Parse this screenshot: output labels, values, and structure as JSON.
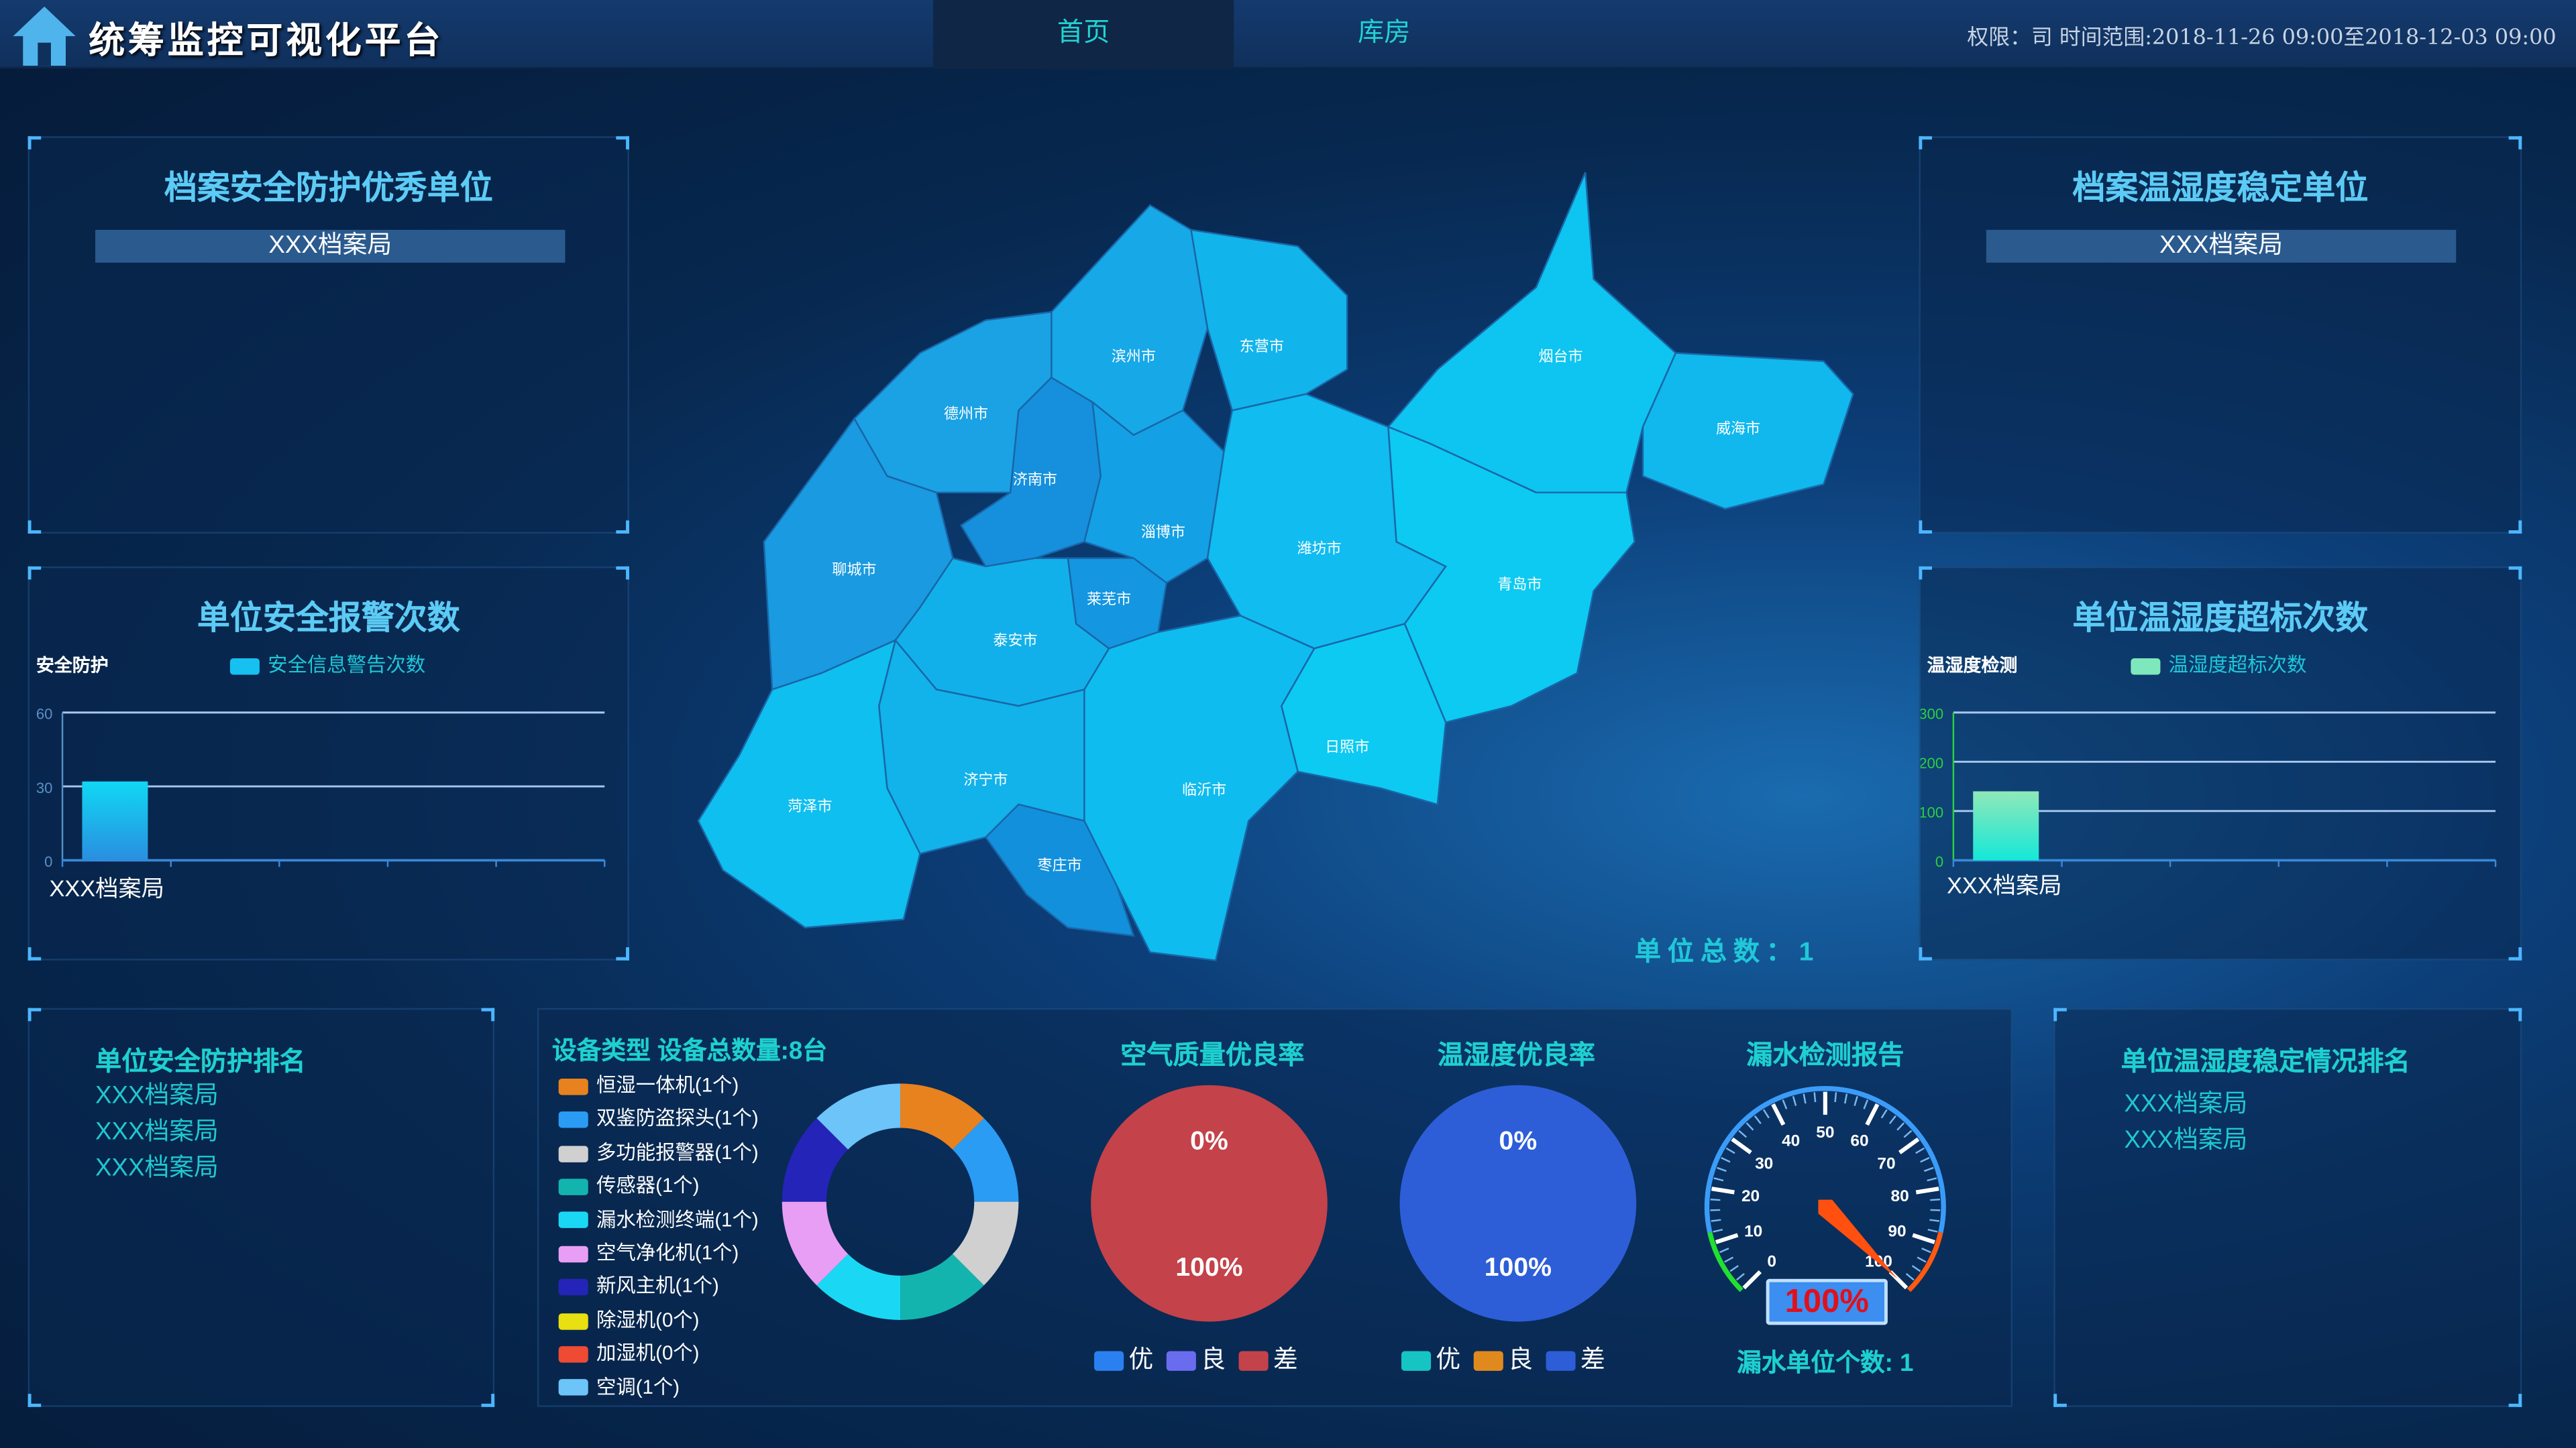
{
  "header": {
    "title": "统筹监控可视化平台",
    "icon": "home-icon",
    "tabs": [
      {
        "label": "首页",
        "active": true
      },
      {
        "label": "库房",
        "active": false
      }
    ],
    "rights": "权限：司  时间范围:2018-11-26 09:00至2018-12-03 09:00"
  },
  "top_left": {
    "title": "档案安全防护优秀单位",
    "unit": "XXX档案局"
  },
  "top_right": {
    "title": "档案温湿度稳定单位",
    "unit": "XXX档案局"
  },
  "mid_left": {
    "title": "单位安全报警次数",
    "chart_data": {
      "type": "bar",
      "ylabel": "安全防护",
      "legend": "安全信息警告次数",
      "categories": [
        "XXX档案局"
      ],
      "values": [
        32
      ],
      "ylim": [
        0,
        60
      ],
      "yticks": [
        0,
        30,
        60
      ],
      "color": "#16d0f0"
    }
  },
  "mid_right": {
    "title": "单位温湿度超标次数",
    "chart_data": {
      "type": "bar",
      "ylabel": "温湿度检测",
      "legend": "温湿度超标次数",
      "categories": [
        "XXX档案局"
      ],
      "values": [
        140
      ],
      "ylim": [
        0,
        300
      ],
      "yticks": [
        0,
        100,
        200,
        300
      ],
      "color": "#3ee6c8"
    }
  },
  "map": {
    "cities": [
      "滨州市",
      "东营市",
      "德州市",
      "济南市",
      "淄博市",
      "潍坊市",
      "烟台市",
      "威海市",
      "青岛市",
      "聊城市",
      "莱芜市",
      "泰安市",
      "日照市",
      "临沂市",
      "济宁市",
      "菏泽市",
      "枣庄市"
    ],
    "total_label": "单位总数：1"
  },
  "rank_left": {
    "title": "单位安全防护排名",
    "items": [
      "XXX档案局",
      "XXX档案局",
      "XXX档案局"
    ]
  },
  "rank_right": {
    "title": "单位温湿度稳定情况排名",
    "items": [
      "XXX档案局",
      "XXX档案局"
    ]
  },
  "devices": {
    "title": "设备类型 设备总数量:8台",
    "chart_data": {
      "type": "pie",
      "items": [
        {
          "name": "恒湿一体机",
          "count": 1,
          "label": "恒湿一体机(1个)",
          "color": "#e8821e"
        },
        {
          "name": "双鉴防盗探头",
          "count": 1,
          "label": "双鉴防盗探头(1个)",
          "color": "#2a9cf4"
        },
        {
          "name": "多功能报警器",
          "count": 1,
          "label": "多功能报警器(1个)",
          "color": "#d0d0d0"
        },
        {
          "name": "传感器",
          "count": 1,
          "label": "传感器(1个)",
          "color": "#14b4ae"
        },
        {
          "name": "漏水检测终端",
          "count": 1,
          "label": "漏水检测终端(1个)",
          "color": "#1ad8f4"
        },
        {
          "name": "空气净化机",
          "count": 1,
          "label": "空气净化机(1个)",
          "color": "#e89ef4"
        },
        {
          "name": "新风主机",
          "count": 1,
          "label": "新风主机(1个)",
          "color": "#2424b8"
        },
        {
          "name": "除湿机",
          "count": 0,
          "label": "除湿机(0个)",
          "color": "#e8e010"
        },
        {
          "name": "加湿机",
          "count": 0,
          "label": "加湿机(0个)",
          "color": "#ee4a34"
        },
        {
          "name": "空调",
          "count": 1,
          "label": "空调(1个)",
          "color": "#6cc4f8"
        }
      ]
    }
  },
  "air": {
    "title": "空气质量优良率",
    "chart_data": {
      "type": "pie",
      "labels": [
        "0%",
        "100%"
      ],
      "legend": [
        {
          "name": "优",
          "color": "#2a80f0",
          "value": 0
        },
        {
          "name": "良",
          "color": "#6a6cf0",
          "value": 0
        },
        {
          "name": "差",
          "color": "#c4424a",
          "value": 100
        }
      ]
    }
  },
  "humidity": {
    "title": "温湿度优良率",
    "chart_data": {
      "type": "pie",
      "labels": [
        "0%",
        "100%"
      ],
      "legend": [
        {
          "name": "优",
          "color": "#16c4c4",
          "value": 0
        },
        {
          "name": "良",
          "color": "#e08a1e",
          "value": 0
        },
        {
          "name": "差",
          "color": "#2d5ed8",
          "value": 100
        }
      ]
    }
  },
  "leak": {
    "title": "漏水检测报告",
    "gauge": {
      "value": 100,
      "min": 0,
      "max": 100,
      "ticks": [
        "0",
        "10",
        "20",
        "30",
        "40",
        "50",
        "60",
        "70",
        "80",
        "90",
        "100"
      ]
    },
    "display": "100%",
    "count_label": "漏水单位个数: 1"
  }
}
